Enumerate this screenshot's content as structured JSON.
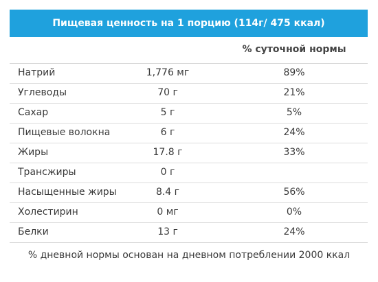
{
  "header": {
    "title": "Пищевая ценность на 1 порцию (114г/ 475 ккал)",
    "color": "#1fa1dd"
  },
  "table": {
    "column_header": "% суточной нормы",
    "rows": [
      {
        "name": "Натрий",
        "amount": "1,776 мг",
        "pct": "89%"
      },
      {
        "name": "Углеводы",
        "amount": "70 г",
        "pct": "21%"
      },
      {
        "name": "Сахар",
        "amount": "5 г",
        "pct": "5%"
      },
      {
        "name": "Пищевые волокна",
        "amount": "6 г",
        "pct": "24%"
      },
      {
        "name": "Жиры",
        "amount": "17.8 г",
        "pct": "33%"
      },
      {
        "name": "Трансжиры",
        "amount": "0 г",
        "pct": ""
      },
      {
        "name": "Насыщенные жиры",
        "amount": "8.4 г",
        "pct": "56%"
      },
      {
        "name": "Холестирин",
        "amount": "0 мг",
        "pct": "0%"
      },
      {
        "name": "Белки",
        "amount": "13 г",
        "pct": "24%"
      }
    ]
  },
  "footnote": "% дневной нормы основан на дневном потреблении 2000 ккал"
}
